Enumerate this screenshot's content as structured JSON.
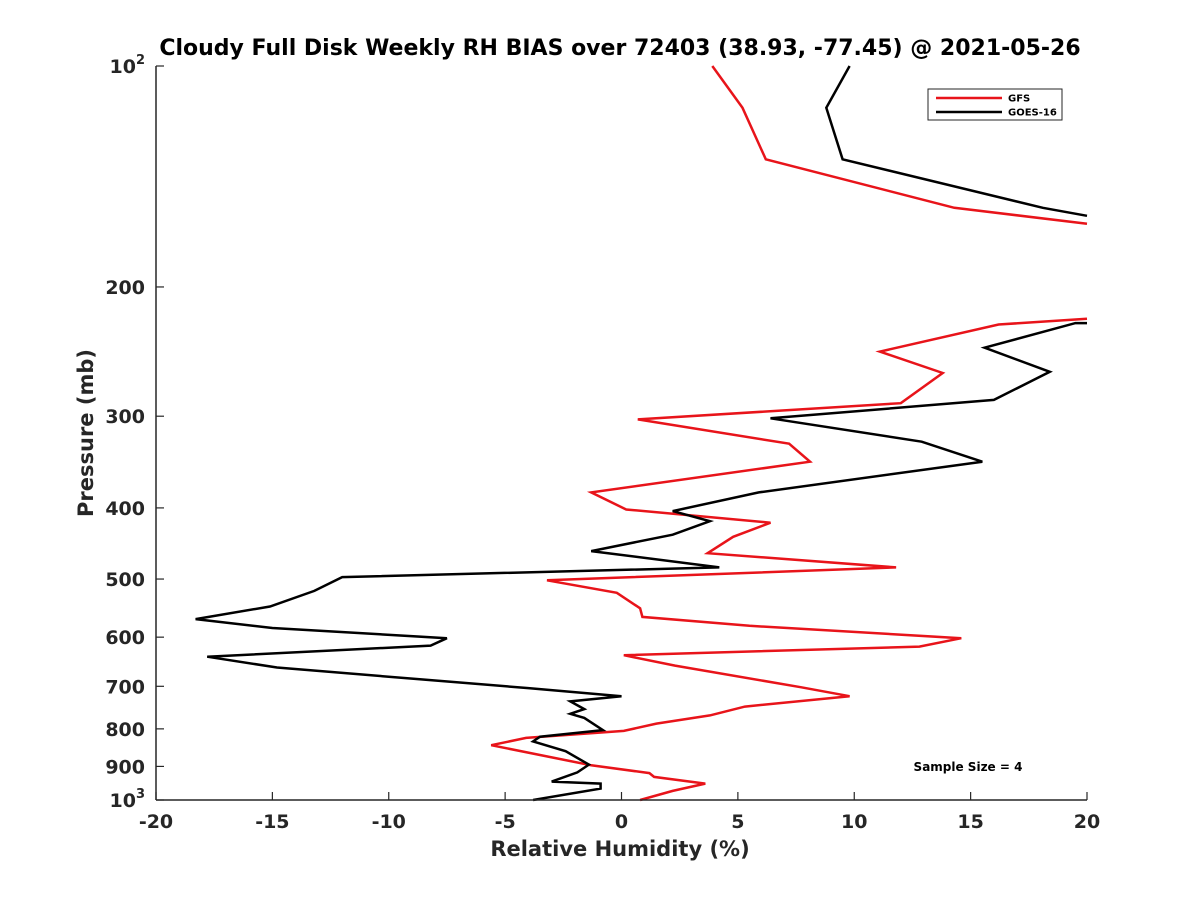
{
  "chart_data": {
    "type": "line",
    "title": "Cloudy Full Disk Weekly RH BIAS over 72403 (38.93, -77.45) @ 2021-05-26",
    "xlabel": "Relative Humidity (%)",
    "ylabel": "Pressure (mb)",
    "xlim": [
      -20,
      20
    ],
    "ylim": [
      100,
      1000
    ],
    "y_scale": "log",
    "y_reversed": true,
    "grid": false,
    "legend_position": "top-right",
    "annotation": "Sample Size = 4",
    "x_ticks": [
      {
        "value": -20,
        "label": "-20"
      },
      {
        "value": -15,
        "label": "-15"
      },
      {
        "value": -10,
        "label": "-10"
      },
      {
        "value": -5,
        "label": "-5"
      },
      {
        "value": 0,
        "label": "0"
      },
      {
        "value": 5,
        "label": "5"
      },
      {
        "value": 10,
        "label": "10"
      },
      {
        "value": 15,
        "label": "15"
      },
      {
        "value": 20,
        "label": "20"
      }
    ],
    "y_ticks": [
      {
        "value": 100,
        "base": "10",
        "exp": "2"
      },
      {
        "value": 200,
        "base": "200",
        "exp": ""
      },
      {
        "value": 300,
        "base": "300",
        "exp": ""
      },
      {
        "value": 400,
        "base": "400",
        "exp": ""
      },
      {
        "value": 500,
        "base": "500",
        "exp": ""
      },
      {
        "value": 600,
        "base": "600",
        "exp": ""
      },
      {
        "value": 700,
        "base": "700",
        "exp": ""
      },
      {
        "value": 800,
        "base": "800",
        "exp": ""
      },
      {
        "value": 900,
        "base": "900",
        "exp": ""
      },
      {
        "value": 1000,
        "base": "10",
        "exp": "3"
      }
    ],
    "series": [
      {
        "name": "GFS",
        "color": "#e8141a",
        "segments": [
          [
            {
              "x": 3.9,
              "y": 100
            },
            {
              "x": 5.2,
              "y": 114
            },
            {
              "x": 6.2,
              "y": 134
            },
            {
              "x": 14.3,
              "y": 156
            },
            {
              "x": 20.0,
              "y": 164
            }
          ],
          [
            {
              "x": 20.0,
              "y": 221
            },
            {
              "x": 16.2,
              "y": 225
            },
            {
              "x": 11.1,
              "y": 245
            },
            {
              "x": 13.8,
              "y": 262
            },
            {
              "x": 12.0,
              "y": 288
            },
            {
              "x": 0.7,
              "y": 303
            },
            {
              "x": 7.2,
              "y": 327
            },
            {
              "x": 8.1,
              "y": 346
            },
            {
              "x": -1.3,
              "y": 381
            },
            {
              "x": 0.2,
              "y": 402
            },
            {
              "x": 6.4,
              "y": 419
            },
            {
              "x": 4.8,
              "y": 438
            },
            {
              "x": 3.7,
              "y": 461
            },
            {
              "x": 11.8,
              "y": 482
            },
            {
              "x": -3.2,
              "y": 502
            },
            {
              "x": -0.2,
              "y": 522
            },
            {
              "x": 0.8,
              "y": 548
            },
            {
              "x": 0.9,
              "y": 563
            },
            {
              "x": 5.5,
              "y": 579
            },
            {
              "x": 14.6,
              "y": 602
            },
            {
              "x": 12.8,
              "y": 618
            },
            {
              "x": 0.1,
              "y": 635
            },
            {
              "x": 2.3,
              "y": 656
            },
            {
              "x": 7.7,
              "y": 702
            },
            {
              "x": 9.8,
              "y": 722
            },
            {
              "x": 5.3,
              "y": 746
            },
            {
              "x": 3.8,
              "y": 767
            },
            {
              "x": 1.5,
              "y": 787
            },
            {
              "x": 0.1,
              "y": 805
            },
            {
              "x": -4.1,
              "y": 823
            },
            {
              "x": -5.6,
              "y": 842
            },
            {
              "x": -1.3,
              "y": 897
            },
            {
              "x": 1.2,
              "y": 919
            },
            {
              "x": 1.4,
              "y": 930
            },
            {
              "x": 3.6,
              "y": 950
            },
            {
              "x": 2.2,
              "y": 972
            },
            {
              "x": 0.8,
              "y": 1000
            }
          ]
        ]
      },
      {
        "name": "GOES-16",
        "color": "#000000",
        "segments": [
          [
            {
              "x": 9.8,
              "y": 100
            },
            {
              "x": 8.8,
              "y": 114
            },
            {
              "x": 9.5,
              "y": 134
            },
            {
              "x": 18.1,
              "y": 156
            },
            {
              "x": 20.0,
              "y": 160
            }
          ],
          [
            {
              "x": 20.0,
              "y": 224
            },
            {
              "x": 19.5,
              "y": 224
            },
            {
              "x": 15.6,
              "y": 242
            },
            {
              "x": 18.4,
              "y": 261
            },
            {
              "x": 16.0,
              "y": 285
            },
            {
              "x": 6.4,
              "y": 302
            },
            {
              "x": 12.9,
              "y": 325
            },
            {
              "x": 15.5,
              "y": 346
            },
            {
              "x": 5.9,
              "y": 381
            },
            {
              "x": 2.2,
              "y": 404
            },
            {
              "x": 3.8,
              "y": 417
            },
            {
              "x": 2.2,
              "y": 435
            },
            {
              "x": -1.3,
              "y": 458
            },
            {
              "x": 4.2,
              "y": 482
            },
            {
              "x": -12.0,
              "y": 497
            },
            {
              "x": -13.2,
              "y": 519
            },
            {
              "x": -15.1,
              "y": 545
            },
            {
              "x": -18.3,
              "y": 567
            },
            {
              "x": -15.0,
              "y": 583
            },
            {
              "x": -7.5,
              "y": 602
            },
            {
              "x": -8.2,
              "y": 616
            },
            {
              "x": -17.8,
              "y": 638
            },
            {
              "x": -14.8,
              "y": 660
            },
            {
              "x": -8.6,
              "y": 685
            },
            {
              "x": -4.0,
              "y": 704
            },
            {
              "x": 0.0,
              "y": 722
            },
            {
              "x": -2.2,
              "y": 734
            },
            {
              "x": -1.6,
              "y": 752
            },
            {
              "x": -2.2,
              "y": 763
            },
            {
              "x": -1.6,
              "y": 773
            },
            {
              "x": -0.8,
              "y": 803
            },
            {
              "x": -3.5,
              "y": 820
            },
            {
              "x": -3.8,
              "y": 832
            },
            {
              "x": -2.4,
              "y": 858
            },
            {
              "x": -1.4,
              "y": 895
            },
            {
              "x": -1.9,
              "y": 917
            },
            {
              "x": -3.0,
              "y": 944
            },
            {
              "x": -0.9,
              "y": 950
            },
            {
              "x": -0.9,
              "y": 965
            },
            {
              "x": -3.8,
              "y": 1000
            }
          ]
        ]
      }
    ]
  }
}
